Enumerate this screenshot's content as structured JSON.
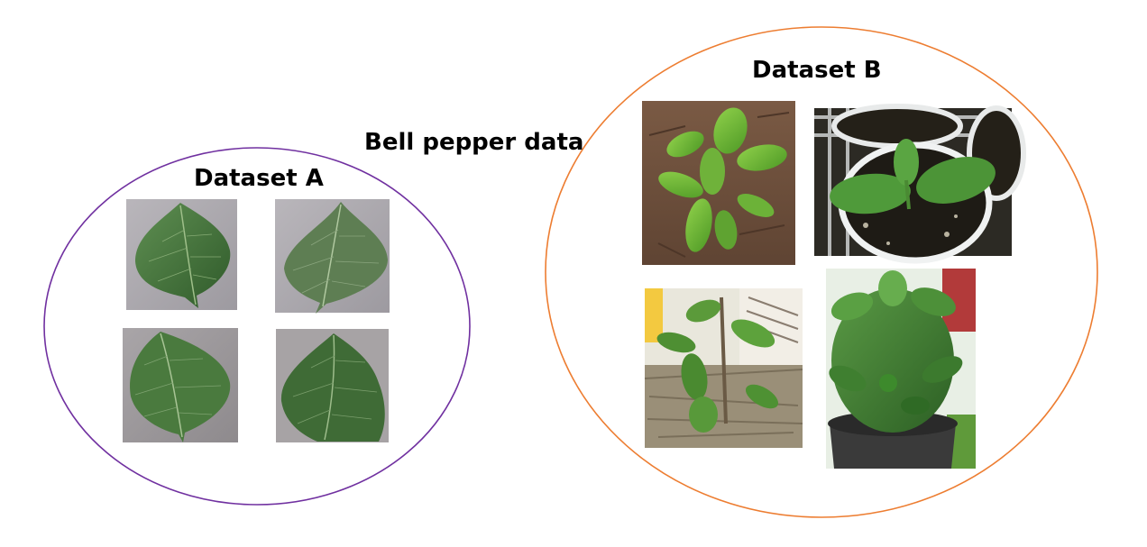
{
  "header": {
    "title": "Bell pepper data"
  },
  "dataset_a": {
    "label": "Dataset A",
    "outline_color": "#7030a0",
    "images": [
      {
        "name": "leaf-image-1",
        "subject": "pepper leaf close-up on grey background"
      },
      {
        "name": "leaf-image-2",
        "subject": "pepper leaf close-up on grey background"
      },
      {
        "name": "leaf-image-3",
        "subject": "pepper leaf close-up on grey background"
      },
      {
        "name": "leaf-image-4",
        "subject": "pepper leaf close-up on grey background"
      }
    ]
  },
  "dataset_b": {
    "label": "Dataset B",
    "outline_color": "#ed7d31",
    "images": [
      {
        "name": "plant-image-soil",
        "subject": "young pepper plant in soil"
      },
      {
        "name": "plant-image-tray",
        "subject": "seedling in white tray pot"
      },
      {
        "name": "plant-image-mulch",
        "subject": "pepper plant in straw mulch"
      },
      {
        "name": "plant-image-pot",
        "subject": "pepper plant in black pot"
      }
    ]
  }
}
